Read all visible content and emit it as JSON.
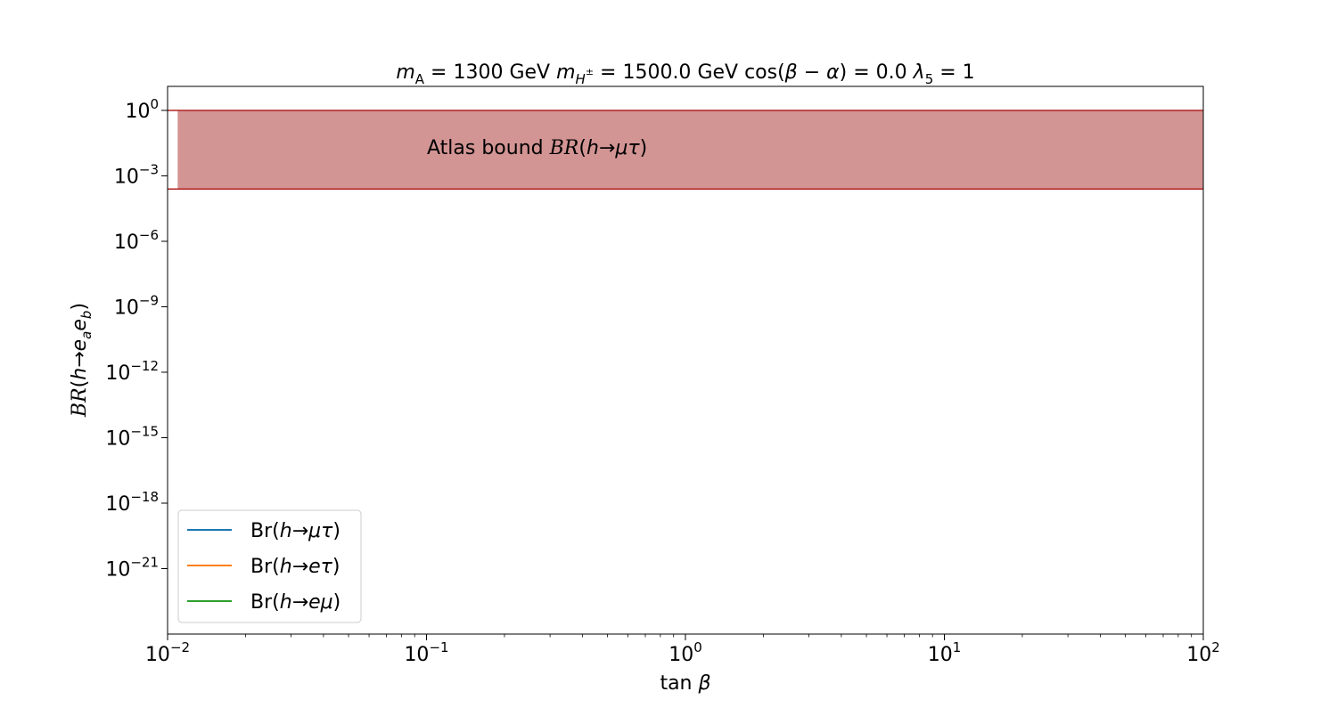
{
  "chart_data": {
    "type": "line",
    "title": "m_A = 1300 GeV m_{H±} = 1500.0 GeV cos(β − α) = 0.0 λ_5 = 1",
    "title_parts": {
      "mA": "1300",
      "mA_unit": "GeV",
      "mH": "1500.0",
      "mH_unit": "GeV",
      "cos": "0.0",
      "lambda5": "1"
    },
    "xlabel": "tan β",
    "ylabel": "BR(h→e_a e_b)",
    "xscale": "log",
    "yscale": "log",
    "xlim": [
      0.01,
      100
    ],
    "ylim_exp": [
      -24,
      1.1
    ],
    "x_ticks": [
      {
        "value": 0.01,
        "base": "10",
        "exp": "−2"
      },
      {
        "value": 0.1,
        "base": "10",
        "exp": "−1"
      },
      {
        "value": 1,
        "base": "10",
        "exp": "0"
      },
      {
        "value": 10,
        "base": "10",
        "exp": "1"
      },
      {
        "value": 100,
        "base": "10",
        "exp": "2"
      }
    ],
    "y_ticks": [
      {
        "exp_value": 0,
        "base": "10",
        "exp": "0"
      },
      {
        "exp_value": -3,
        "base": "10",
        "exp": "−3"
      },
      {
        "exp_value": -6,
        "base": "10",
        "exp": "−6"
      },
      {
        "exp_value": -9,
        "base": "10",
        "exp": "−9"
      },
      {
        "exp_value": -12,
        "base": "10",
        "exp": "−12"
      },
      {
        "exp_value": -15,
        "base": "10",
        "exp": "−15"
      },
      {
        "exp_value": -18,
        "base": "10",
        "exp": "−18"
      },
      {
        "exp_value": -21,
        "base": "10",
        "exp": "−21"
      }
    ],
    "band": {
      "label_prefix": "Atlas bound",
      "label_math": "BR(h→μτ)",
      "x_start": 0.011,
      "y_low": 0.00025,
      "y_high": 1,
      "fill_color": "#d39494",
      "edge_color": "#b22222"
    },
    "series": [
      {
        "name": "Br(h→μτ)",
        "color": "#1f77b4",
        "values": []
      },
      {
        "name": "Br(h→eτ)",
        "color": "#ff7f0e",
        "values": []
      },
      {
        "name": "Br(h→eμ)",
        "color": "#2ca02c",
        "values": []
      }
    ],
    "legend_position": "lower-left",
    "grid": false
  }
}
